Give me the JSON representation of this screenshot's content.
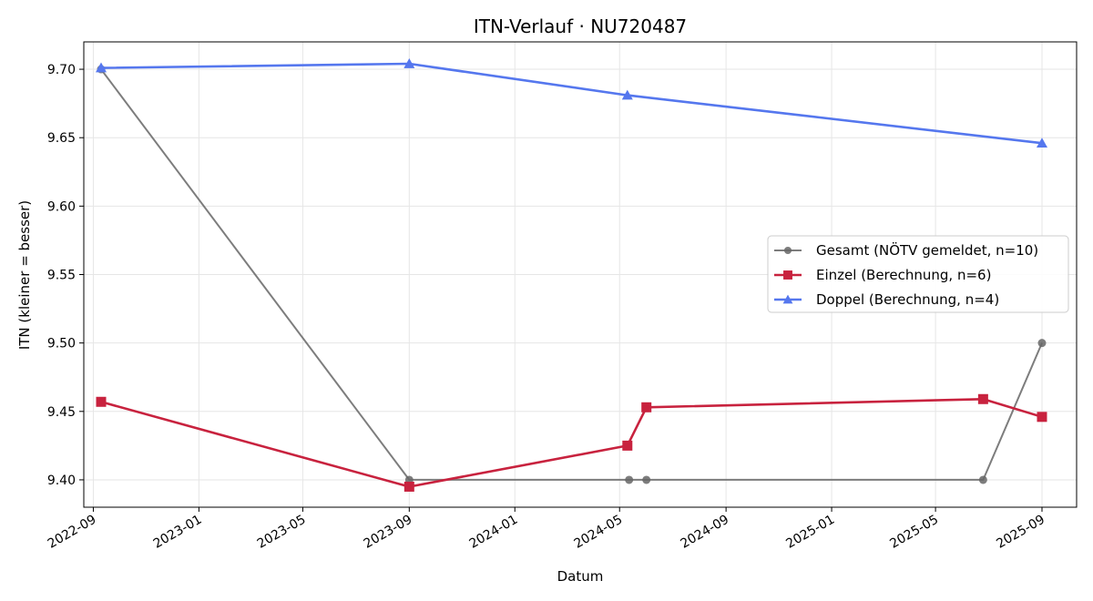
{
  "chart_data": {
    "type": "line",
    "title": "ITN-Verlauf · NU720487",
    "xlabel": "Datum",
    "ylabel": "ITN  (kleiner = besser)",
    "xlim": [
      "2022-08-21",
      "2025-10-11"
    ],
    "ylim": [
      9.38,
      9.72
    ],
    "x_ticks": [
      "2022-09",
      "2023-01",
      "2023-05",
      "2023-09",
      "2024-01",
      "2024-05",
      "2024-09",
      "2025-01",
      "2025-05",
      "2025-09"
    ],
    "y_ticks": [
      "9.40",
      "9.45",
      "9.50",
      "9.55",
      "9.60",
      "9.65",
      "9.70"
    ],
    "grid": true,
    "legend_position": "center-right",
    "series": [
      {
        "name": "Gesamt (NÖTV gemeldet, n=10)",
        "color": "#666666",
        "marker": "circle",
        "points": [
          {
            "x": "2022-09-10",
            "y": 9.7
          },
          {
            "x": "2023-09-01",
            "y": 9.4
          },
          {
            "x": "2024-05-12",
            "y": 9.4
          },
          {
            "x": "2024-06-01",
            "y": 9.4
          },
          {
            "x": "2025-06-25",
            "y": 9.4
          },
          {
            "x": "2025-09-01",
            "y": 9.5
          }
        ]
      },
      {
        "name": "Einzel (Berechnung, n=6)",
        "color": "#c8223e",
        "marker": "square",
        "points": [
          {
            "x": "2022-09-10",
            "y": 9.457
          },
          {
            "x": "2023-09-01",
            "y": 9.395
          },
          {
            "x": "2024-05-10",
            "y": 9.425
          },
          {
            "x": "2024-06-01",
            "y": 9.453
          },
          {
            "x": "2025-06-25",
            "y": 9.459
          },
          {
            "x": "2025-09-01",
            "y": 9.446
          }
        ]
      },
      {
        "name": "Doppel (Berechnung, n=4)",
        "color": "#5577ee",
        "marker": "triangle",
        "points": [
          {
            "x": "2022-09-10",
            "y": 9.701
          },
          {
            "x": "2023-09-01",
            "y": 9.704
          },
          {
            "x": "2024-05-10",
            "y": 9.681
          },
          {
            "x": "2025-09-01",
            "y": 9.646
          }
        ]
      }
    ]
  }
}
